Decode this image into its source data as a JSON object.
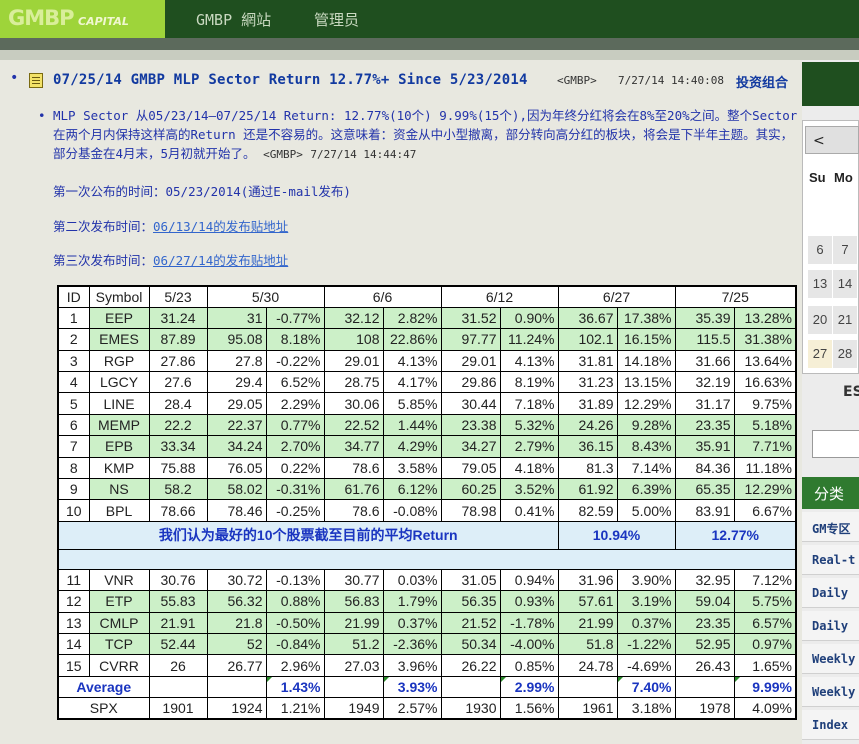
{
  "header": {
    "logo_main": "GMBP",
    "logo_sub": "CAPITAL",
    "nav": [
      "GMBP 網站",
      "管理员"
    ]
  },
  "post": {
    "title": "07/25/14 GMBP MLP Sector Return 12.77%+ Since 5/23/2014",
    "author": "<GMBP>",
    "date": "7/27/14 14:40:08",
    "tag": "投资组合",
    "reply_text": "MLP Sector 从05/23/14—07/25/14 Return: 12.77%(10个) 9.99%(15个),因为年终分红将会在8%至20%之间。整个Sector 在两个月内保持这样高的Return 还是不容易的。这意味着：资金从中小型撤离，部分转向高分红的板块，将会是下半年主题。其实，部分基金在4月末，5月初就开始了。",
    "reply_author": "<GMBP>",
    "reply_date": "7/27/14 14:44:47",
    "first_publish": "第一次公布的时间：05/23/2014(通过E-mail发布)",
    "second_prefix": "第二次发布时间：",
    "second_link": "06/13/14的发布贴地址",
    "third_prefix": "第三次发布时间：",
    "third_link": "06/27/14的发布贴地址"
  },
  "table": {
    "headers": [
      "ID",
      "Symbol",
      "5/23",
      "5/30",
      "6/6",
      "6/12",
      "6/27",
      "7/25"
    ],
    "rows_top": [
      {
        "id": "1",
        "sym": "EEP",
        "hl": true,
        "v": [
          "31.24",
          "31",
          "-0.77%",
          "32.12",
          "2.82%",
          "31.52",
          "0.90%",
          "36.67",
          "17.38%",
          "35.39",
          "13.28%"
        ]
      },
      {
        "id": "2",
        "sym": "EMES",
        "hl": true,
        "v": [
          "87.89",
          "95.08",
          "8.18%",
          "108",
          "22.86%",
          "97.77",
          "11.24%",
          "102.1",
          "16.15%",
          "115.5",
          "31.38%"
        ]
      },
      {
        "id": "3",
        "sym": "RGP",
        "hl": false,
        "v": [
          "27.86",
          "27.8",
          "-0.22%",
          "29.01",
          "4.13%",
          "29.01",
          "4.13%",
          "31.81",
          "14.18%",
          "31.66",
          "13.64%"
        ]
      },
      {
        "id": "4",
        "sym": "LGCY",
        "hl": false,
        "v": [
          "27.6",
          "29.4",
          "6.52%",
          "28.75",
          "4.17%",
          "29.86",
          "8.19%",
          "31.23",
          "13.15%",
          "32.19",
          "16.63%"
        ]
      },
      {
        "id": "5",
        "sym": "LINE",
        "hl": false,
        "v": [
          "28.4",
          "29.05",
          "2.29%",
          "30.06",
          "5.85%",
          "30.44",
          "7.18%",
          "31.89",
          "12.29%",
          "31.17",
          "9.75%"
        ]
      },
      {
        "id": "6",
        "sym": "MEMP",
        "hl": true,
        "v": [
          "22.2",
          "22.37",
          "0.77%",
          "22.52",
          "1.44%",
          "23.38",
          "5.32%",
          "24.26",
          "9.28%",
          "23.35",
          "5.18%"
        ]
      },
      {
        "id": "7",
        "sym": "EPB",
        "hl": true,
        "v": [
          "33.34",
          "34.24",
          "2.70%",
          "34.77",
          "4.29%",
          "34.27",
          "2.79%",
          "36.15",
          "8.43%",
          "35.91",
          "7.71%"
        ]
      },
      {
        "id": "8",
        "sym": "KMP",
        "hl": false,
        "v": [
          "75.88",
          "76.05",
          "0.22%",
          "78.6",
          "3.58%",
          "79.05",
          "4.18%",
          "81.3",
          "7.14%",
          "84.36",
          "11.18%"
        ]
      },
      {
        "id": "9",
        "sym": "NS",
        "hl": true,
        "v": [
          "58.2",
          "58.02",
          "-0.31%",
          "61.76",
          "6.12%",
          "60.25",
          "3.52%",
          "61.92",
          "6.39%",
          "65.35",
          "12.29%"
        ]
      },
      {
        "id": "10",
        "sym": "BPL",
        "hl": false,
        "v": [
          "78.66",
          "78.46",
          "-0.25%",
          "78.6",
          "-0.08%",
          "78.98",
          "0.41%",
          "82.59",
          "5.00%",
          "83.91",
          "6.67%"
        ]
      }
    ],
    "summary_label": "我们认为最好的10个股票截至目前的平均Return",
    "summary_627": "10.94%",
    "summary_725": "12.77%",
    "rows_bottom": [
      {
        "id": "11",
        "sym": "VNR",
        "hl": false,
        "v": [
          "30.76",
          "30.72",
          "-0.13%",
          "30.77",
          "0.03%",
          "31.05",
          "0.94%",
          "31.96",
          "3.90%",
          "32.95",
          "7.12%"
        ]
      },
      {
        "id": "12",
        "sym": "ETP",
        "hl": true,
        "v": [
          "55.83",
          "56.32",
          "0.88%",
          "56.83",
          "1.79%",
          "56.35",
          "0.93%",
          "57.61",
          "3.19%",
          "59.04",
          "5.75%"
        ]
      },
      {
        "id": "13",
        "sym": "CMLP",
        "hl": true,
        "v": [
          "21.91",
          "21.8",
          "-0.50%",
          "21.99",
          "0.37%",
          "21.52",
          "-1.78%",
          "21.99",
          "0.37%",
          "23.35",
          "6.57%"
        ]
      },
      {
        "id": "14",
        "sym": "TCP",
        "hl": true,
        "v": [
          "52.44",
          "52",
          "-0.84%",
          "51.2",
          "-2.36%",
          "50.34",
          "-4.00%",
          "51.8",
          "-1.22%",
          "52.95",
          "0.97%"
        ]
      },
      {
        "id": "15",
        "sym": "CVRR",
        "hl": false,
        "v": [
          "26",
          "26.77",
          "2.96%",
          "27.03",
          "3.96%",
          "26.22",
          "0.85%",
          "24.78",
          "-4.69%",
          "26.43",
          "1.65%"
        ]
      }
    ],
    "average": {
      "label": "Average",
      "v530": "1.43%",
      "v66": "3.93%",
      "v612": "2.99%",
      "v627": "7.40%",
      "v725": "9.99%"
    },
    "spx": {
      "label": "SPX",
      "v": [
        "1901",
        "1924",
        "1.21%",
        "1949",
        "2.57%",
        "1930",
        "1.56%",
        "1961",
        "3.18%",
        "1978",
        "4.09%"
      ]
    }
  },
  "sidebar": {
    "prev": "<",
    "dow": [
      "Su",
      "Mo"
    ],
    "dates": [
      "6",
      "7",
      "13",
      "14",
      "20",
      "21",
      "27",
      "28"
    ],
    "search_partial": "ES",
    "category_title": "分类",
    "items": [
      "GM专区",
      "Real-t",
      "Daily",
      "Daily",
      "Weekly",
      "Weekly",
      "Index"
    ]
  }
}
